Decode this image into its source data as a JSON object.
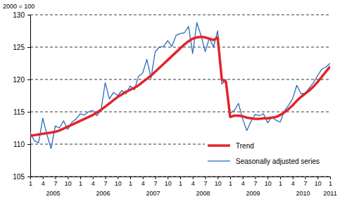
{
  "chart_data": {
    "type": "line",
    "y_label": "2000 = 100",
    "categories": [
      "1",
      null,
      null,
      "4",
      null,
      null,
      "7",
      null,
      null,
      "10",
      null,
      null,
      "1",
      null,
      null,
      "4",
      null,
      null,
      "7",
      null,
      null,
      "10",
      null,
      null,
      "1",
      null,
      null,
      "4",
      null,
      null,
      "7",
      null,
      null,
      "10",
      null,
      null,
      "1",
      null,
      null,
      "4",
      null,
      null,
      "7",
      null,
      null,
      "10",
      null,
      null,
      "1",
      null,
      null,
      "4",
      null,
      null,
      "7",
      null,
      null,
      "10",
      null,
      null,
      "1",
      null,
      null,
      "4",
      null,
      null,
      "7",
      null,
      null,
      "10",
      null,
      null,
      "1"
    ],
    "years": [
      "2005",
      "2006",
      "2007",
      "2008",
      "2009",
      "2010",
      "2011"
    ],
    "series": [
      {
        "name": "Trend",
        "color": "#e3242b",
        "values": [
          111.3,
          111.4,
          111.5,
          111.6,
          111.7,
          111.8,
          111.9,
          112.1,
          112.4,
          112.7,
          113.0,
          113.3,
          113.6,
          113.9,
          114.2,
          114.5,
          114.9,
          115.3,
          115.8,
          116.3,
          116.8,
          117.3,
          117.7,
          118.1,
          118.4,
          118.7,
          119.1,
          119.6,
          120.1,
          120.6,
          121.2,
          121.8,
          122.4,
          123.0,
          123.6,
          124.2,
          124.8,
          125.4,
          125.9,
          126.3,
          126.5,
          126.6,
          126.5,
          126.3,
          126.1,
          126.5,
          120.0,
          119.6,
          114.2,
          114.4,
          114.4,
          114.3,
          114.1,
          114.0,
          113.9,
          113.9,
          114.0,
          114.0,
          114.1,
          114.2,
          114.5,
          114.9,
          115.4,
          116.0,
          116.7,
          117.3,
          117.8,
          118.3,
          118.9,
          119.6,
          120.4,
          121.2,
          122.0
        ]
      },
      {
        "name": "Seasonally adjusted series",
        "color": "#2a6ebb",
        "values": [
          111.8,
          110.5,
          110.2,
          114.0,
          111.5,
          109.3,
          112.8,
          112.5,
          113.6,
          112.3,
          113.4,
          113.9,
          114.7,
          114.5,
          115.0,
          115.2,
          114.4,
          115.3,
          119.5,
          117.0,
          118.0,
          117.5,
          118.3,
          117.8,
          119.0,
          118.4,
          120.5,
          121.0,
          123.1,
          120.2,
          124.3,
          125.0,
          125.1,
          126.0,
          125.1,
          126.8,
          127.1,
          127.2,
          128.2,
          124.0,
          128.8,
          126.8,
          124.3,
          126.4,
          125.0,
          127.5,
          119.3,
          120.0,
          114.8,
          115.2,
          116.3,
          113.9,
          112.1,
          113.5,
          114.6,
          114.4,
          114.7,
          113.3,
          114.2,
          113.7,
          113.4,
          115.1,
          116.0,
          117.0,
          119.1,
          117.8,
          117.8,
          118.7,
          119.5,
          120.6,
          121.6,
          121.9,
          122.5
        ]
      }
    ],
    "ylim": [
      105,
      130
    ],
    "yticks": [
      105,
      110,
      115,
      120,
      125,
      130
    ],
    "grid": true,
    "legend": "lower right"
  }
}
